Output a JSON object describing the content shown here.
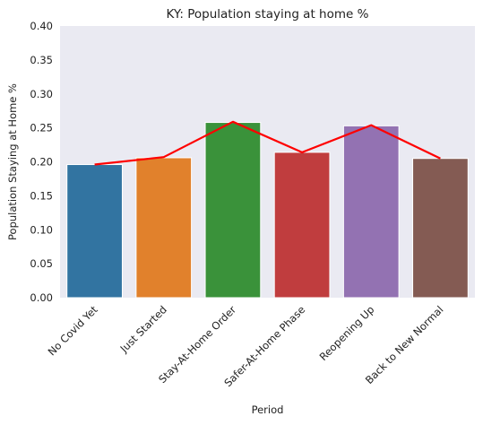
{
  "chart_data": {
    "type": "bar",
    "title": "KY: Population staying at home %",
    "xlabel": "Period",
    "ylabel": "Population Staying at Home %",
    "categories": [
      "No Covid Yet",
      "Just Started",
      "Stay-At-Home Order",
      "Safer-At-Home Phase",
      "Reopening Up",
      "Back to New Normal"
    ],
    "values": [
      0.196,
      0.206,
      0.258,
      0.214,
      0.253,
      0.205
    ],
    "bar_colors": [
      "#3274a1",
      "#e1812c",
      "#3a923a",
      "#c03d3e",
      "#9372b2",
      "#845b53"
    ],
    "line": {
      "values": [
        0.196,
        0.207,
        0.259,
        0.214,
        0.254,
        0.205
      ],
      "color": "#ff0000"
    },
    "ylim": [
      0,
      0.4
    ],
    "yticks": [
      0.0,
      0.05,
      0.1,
      0.15,
      0.2,
      0.25,
      0.3,
      0.35,
      0.4
    ],
    "ytick_labels": [
      "0.00",
      "0.05",
      "0.10",
      "0.15",
      "0.20",
      "0.25",
      "0.30",
      "0.35",
      "0.40"
    ],
    "grid": false,
    "background": "#eaeaf2"
  }
}
